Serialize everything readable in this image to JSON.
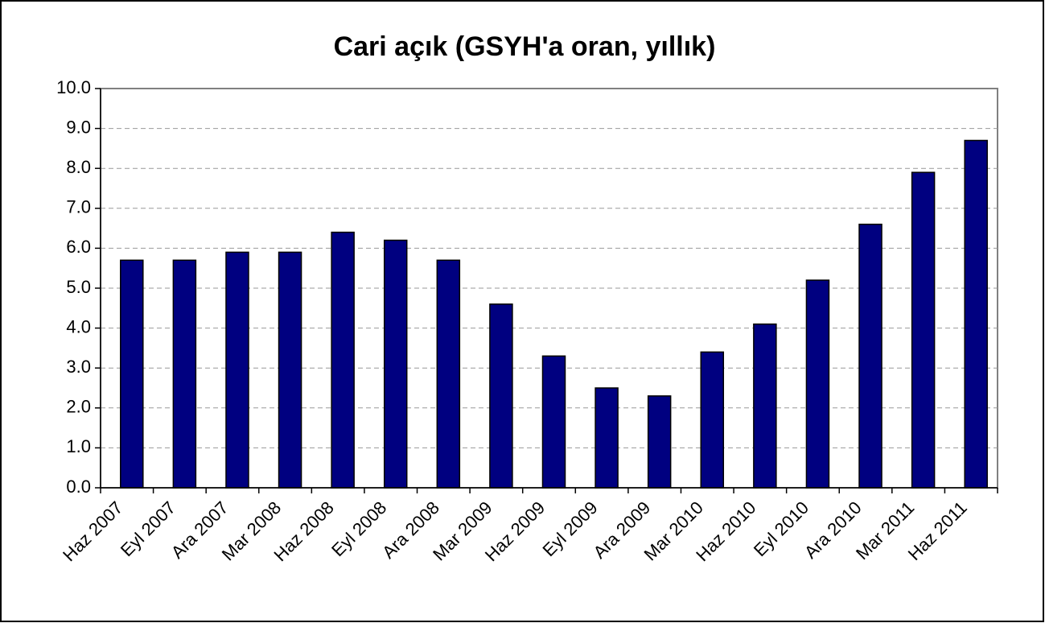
{
  "chart_data": {
    "type": "bar",
    "title": "Cari açık (GSYH'a oran, yıllık)",
    "categories": [
      "Haz 2007",
      "Eyl 2007",
      "Ara 2007",
      "Mar 2008",
      "Haz 2008",
      "Eyl 2008",
      "Ara 2008",
      "Mar 2009",
      "Haz 2009",
      "Eyl 2009",
      "Ara 2009",
      "Mar 2010",
      "Haz 2010",
      "Eyl 2010",
      "Ara 2010",
      "Mar 2011",
      "Haz 2011"
    ],
    "values": [
      5.7,
      5.7,
      5.9,
      5.9,
      6.4,
      6.2,
      5.7,
      4.6,
      3.3,
      2.5,
      2.3,
      3.4,
      4.1,
      5.2,
      6.6,
      7.9,
      8.7
    ],
    "color": "#000080",
    "ylim": [
      0,
      10
    ],
    "yticks": [
      {
        "value": 0,
        "label": "0.0"
      },
      {
        "value": 1,
        "label": "1.0"
      },
      {
        "value": 2,
        "label": "2.0"
      },
      {
        "value": 3,
        "label": "3.0"
      },
      {
        "value": 4,
        "label": "4.0"
      },
      {
        "value": 5,
        "label": "5.0"
      },
      {
        "value": 6,
        "label": "6.0"
      },
      {
        "value": 7,
        "label": "7.0"
      },
      {
        "value": 8,
        "label": "8.0"
      },
      {
        "value": 9,
        "label": "9.0"
      },
      {
        "value": 10,
        "label": "10.0"
      }
    ],
    "grid": true
  }
}
